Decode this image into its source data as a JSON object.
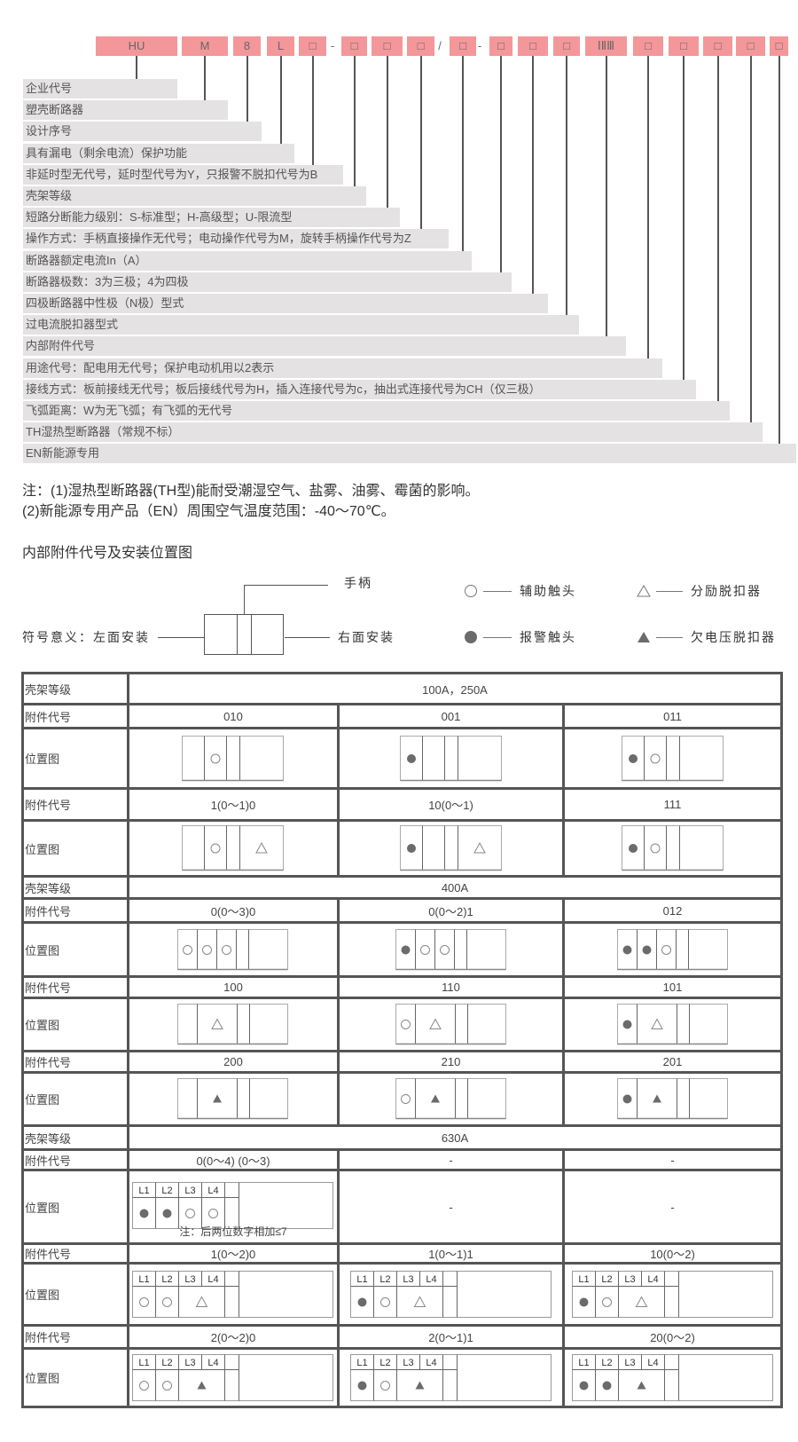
{
  "model_code": {
    "segments": [
      {
        "kind": "box",
        "label": "HU"
      },
      {
        "kind": "box",
        "label": "M"
      },
      {
        "kind": "box",
        "label": "8"
      },
      {
        "kind": "box",
        "label": "L"
      },
      {
        "kind": "box",
        "label": "□"
      },
      {
        "kind": "sep",
        "label": "-"
      },
      {
        "kind": "box",
        "label": "□"
      },
      {
        "kind": "box",
        "label": "□"
      },
      {
        "kind": "box",
        "label": "□"
      },
      {
        "kind": "sep",
        "label": "/"
      },
      {
        "kind": "box",
        "label": "□"
      },
      {
        "kind": "sep",
        "label": "-"
      },
      {
        "kind": "box",
        "label": "□"
      },
      {
        "kind": "box",
        "label": "□"
      },
      {
        "kind": "box",
        "label": "□"
      },
      {
        "kind": "box",
        "label": "ⅠⅡⅢ"
      },
      {
        "kind": "box",
        "label": "□"
      },
      {
        "kind": "box",
        "label": "□"
      },
      {
        "kind": "box",
        "label": "□"
      },
      {
        "kind": "box",
        "label": "□"
      },
      {
        "kind": "box",
        "label": "□"
      }
    ],
    "descriptions": [
      "企业代号",
      "塑壳断路器",
      "设计序号",
      "具有漏电（剩余电流）保护功能",
      "非延时型无代号，延时型代号为Y，只报警不脱扣代号为B",
      "壳架等级",
      "短路分断能力级别：S-标准型；H-高级型；U-限流型",
      "操作方式：手柄直接操作无代号；电动操作代号为M，旋转手柄操作代号为Z",
      "断路器额定电流In（A）",
      "断路器极数：3为三极；4为四极",
      "四极断路器中性极（N极）型式",
      "过电流脱扣器型式",
      "内部附件代号",
      "用途代号：配电用无代号；保护电动机用以2表示",
      "接线方式：板前接线无代号；板后接线代号为H，插入连接代号为c，抽出式连接代号为CH（仅三极）",
      "飞弧距离：W为无飞弧；有飞弧的无代号",
      "TH湿热型断路器（常规不标）",
      "EN新能源专用"
    ],
    "box_color": "#f4979a",
    "bar_color": "#e4e2e3"
  },
  "notes": [
    "注：(1)湿热型断路器(TH型)能耐受潮湿空气、盐雾、油雾、霉菌的影响。",
    "(2)新能源专用产品（EN）周围空气温度范围：-40～70℃。"
  ],
  "section_title": "内部附件代号及安装位置图",
  "legend": {
    "handle": "手柄",
    "left_mount": "符号意义：左面安装",
    "right_mount": "右面安装",
    "items": [
      {
        "symbol": "aux-contact",
        "label": "辅助触头"
      },
      {
        "symbol": "shunt-release",
        "label": "分励脱扣器"
      },
      {
        "symbol": "alarm-contact",
        "label": "报警触头"
      },
      {
        "symbol": "undervoltage-release",
        "label": "欠电压脱扣器"
      }
    ]
  },
  "accessory_table": {
    "frame_label": "壳架等级",
    "code_label": "附件代号",
    "diagram_label": "位置图",
    "frames": [
      {
        "rating": "100A，250A",
        "groups": [
          {
            "codes": [
              "010",
              "001",
              "011"
            ],
            "diagrams": [
              {
                "type": "250A",
                "slots": [
                  "",
                  "aux-contact",
                  "",
                  ""
                ]
              },
              {
                "type": "250A",
                "slots": [
                  "alarm-contact",
                  "",
                  "",
                  ""
                ]
              },
              {
                "type": "250A",
                "slots": [
                  "alarm-contact",
                  "aux-contact",
                  "",
                  ""
                ]
              }
            ]
          },
          {
            "codes": [
              "1(0～1)0",
              "10(0～1)",
              "111"
            ],
            "diagrams": [
              {
                "type": "250A",
                "slots": [
                  "",
                  "aux-contact",
                  "",
                  "shunt-release"
                ]
              },
              {
                "type": "250A",
                "slots": [
                  "alarm-contact",
                  "",
                  "",
                  "shunt-release"
                ]
              },
              {
                "type": "250A",
                "slots": [
                  "alarm-contact",
                  "aux-contact",
                  "",
                  ""
                ]
              }
            ]
          }
        ]
      },
      {
        "rating": "400A",
        "groups": [
          {
            "codes": [
              "0(0～3)0",
              "0(0～2)1",
              "012"
            ],
            "diagrams": [
              {
                "type": "400A",
                "slots": [
                  "aux-contact",
                  "aux-contact",
                  "aux-contact",
                  "",
                  ""
                ]
              },
              {
                "type": "400A",
                "slots": [
                  "alarm-contact",
                  "aux-contact",
                  "aux-contact",
                  "",
                  ""
                ]
              },
              {
                "type": "400A",
                "slots": [
                  "alarm-contact",
                  "alarm-contact",
                  "aux-contact",
                  "",
                  ""
                ]
              }
            ]
          },
          {
            "codes": [
              "100",
              "110",
              "101"
            ],
            "diagrams": [
              {
                "type": "400A",
                "slots": [
                  "",
                  "shunt-release",
                  "",
                  ""
                ]
              },
              {
                "type": "400A",
                "slots": [
                  "aux-contact",
                  "shunt-release",
                  "",
                  ""
                ]
              },
              {
                "type": "400A",
                "slots": [
                  "alarm-contact",
                  "shunt-release",
                  "",
                  ""
                ]
              }
            ]
          },
          {
            "codes": [
              "200",
              "210",
              "201"
            ],
            "diagrams": [
              {
                "type": "400A",
                "slots": [
                  "",
                  "undervoltage-release",
                  "",
                  ""
                ]
              },
              {
                "type": "400A",
                "slots": [
                  "aux-contact",
                  "undervoltage-release",
                  "",
                  ""
                ]
              },
              {
                "type": "400A",
                "slots": [
                  "alarm-contact",
                  "undervoltage-release",
                  "",
                  ""
                ]
              }
            ]
          }
        ]
      },
      {
        "rating": "630A",
        "groups": [
          {
            "codes": [
              "0(0～4) (0～3)",
              "-",
              "-"
            ],
            "diagrams": [
              {
                "type": "630A",
                "headers": [
                  "L1",
                  "L2",
                  "L3",
                  "L4"
                ],
                "slots": [
                  "alarm-contact",
                  "alarm-contact",
                  "aux-contact",
                  "aux-contact",
                  ""
                ],
                "note": "注：后两位数字相加≤7"
              },
              {
                "empty_text": "-"
              },
              {
                "empty_text": "-"
              }
            ]
          },
          {
            "codes": [
              "1(0～2)0",
              "1(0～1)1",
              "10(0～2)"
            ],
            "diagrams": [
              {
                "type": "630A",
                "headers": [
                  "L1",
                  "L2",
                  "L3",
                  "L4"
                ],
                "slots": [
                  "aux-contact",
                  "aux-contact",
                  "shunt-release",
                  ""
                ]
              },
              {
                "type": "630A",
                "headers": [
                  "L1",
                  "L2",
                  "L3",
                  "L4"
                ],
                "slots": [
                  "alarm-contact",
                  "aux-contact",
                  "shunt-release",
                  ""
                ]
              },
              {
                "type": "630A",
                "headers": [
                  "L1",
                  "L2",
                  "L3",
                  "L4"
                ],
                "slots": [
                  "alarm-contact",
                  "aux-contact",
                  "shunt-release",
                  ""
                ]
              }
            ]
          },
          {
            "codes": [
              "2(0～2)0",
              "2(0～1)1",
              "20(0～2)"
            ],
            "diagrams": [
              {
                "type": "630A",
                "headers": [
                  "L1",
                  "L2",
                  "L3",
                  "L4"
                ],
                "slots": [
                  "aux-contact",
                  "aux-contact",
                  "undervoltage-release",
                  ""
                ]
              },
              {
                "type": "630A",
                "headers": [
                  "L1",
                  "L2",
                  "L3",
                  "L4"
                ],
                "slots": [
                  "alarm-contact",
                  "aux-contact",
                  "undervoltage-release",
                  ""
                ]
              },
              {
                "type": "630A",
                "headers": [
                  "L1",
                  "L2",
                  "L3",
                  "L4"
                ],
                "slots": [
                  "alarm-contact",
                  "alarm-contact",
                  "undervoltage-release",
                  ""
                ]
              }
            ]
          }
        ]
      }
    ]
  }
}
